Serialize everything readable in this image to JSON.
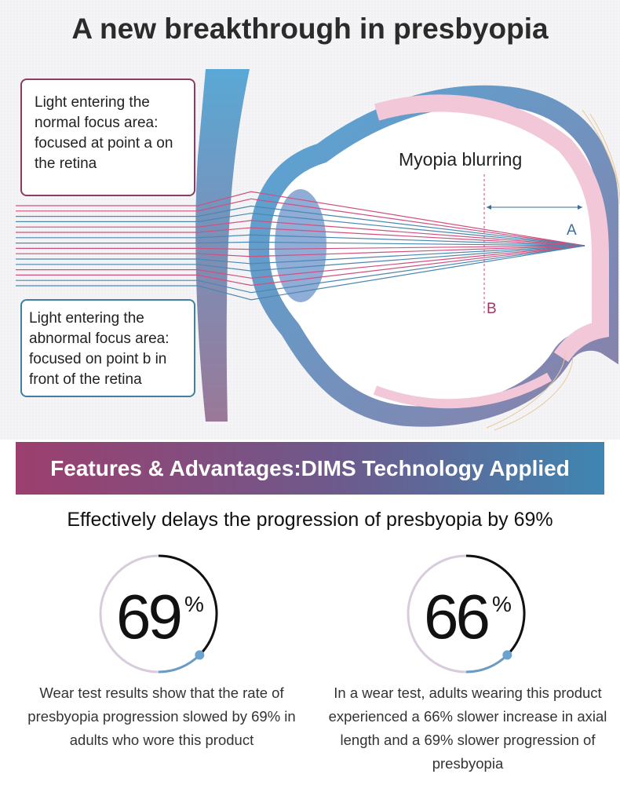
{
  "title": "A new breakthrough in presbyopia",
  "diagram": {
    "normal_box": "Light entering the normal focus area: focused at point a on the retina",
    "abnormal_box": "Light entering the abnormal focus area: focused on point b in front of the retina",
    "myopia_label": "Myopia blurring",
    "point_a": "A",
    "point_b": "B",
    "colors": {
      "pink_ray": "#d0507e",
      "blue_ray": "#4a88b0",
      "cornea_top": "#5aa8d6",
      "cornea_bottom": "#9a7898",
      "retina": "#f2c7d8"
    }
  },
  "banner": "Features & Advantages:DIMS Technology Applied",
  "subtitle": "Effectively delays the progression of presbyopia by 69%",
  "stats": [
    {
      "value": "69",
      "unit": "%",
      "progress": 69,
      "description": "Wear test results show that the rate of presbyopia progression slowed by 69% in adults who wore this product"
    },
    {
      "value": "66",
      "unit": "%",
      "progress": 66,
      "description": "In a wear test, adults wearing this product experienced a 66% slower increase in axial length and a 69% slower progression of presbyopia"
    }
  ]
}
